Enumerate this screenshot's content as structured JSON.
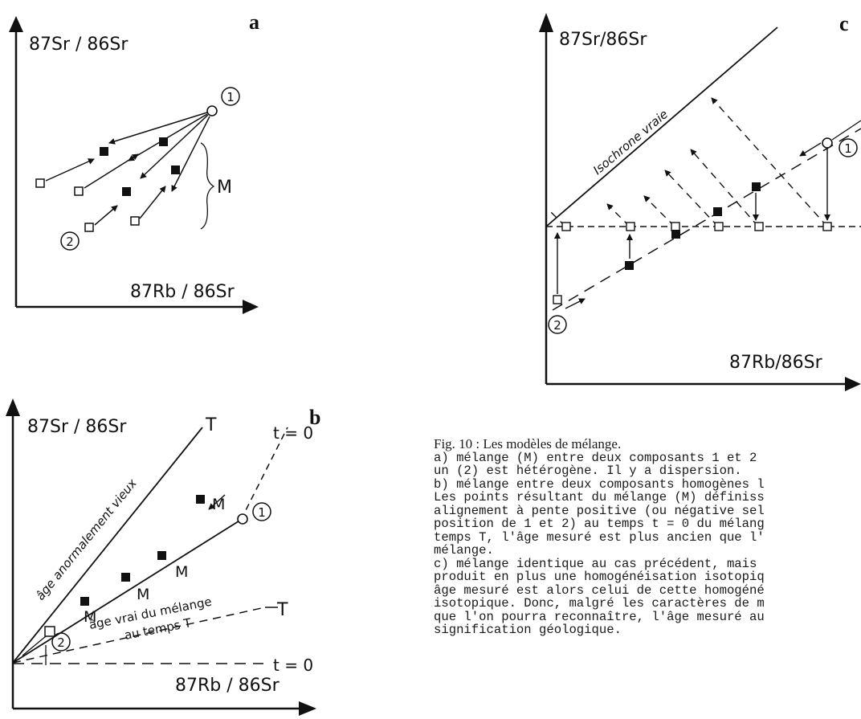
{
  "panels": {
    "a": {
      "letter": "a",
      "y_axis": "87Sr / 86Sr",
      "x_axis": "87Rb / 86Sr",
      "component_1": "1",
      "component_2": "2",
      "mixture": "M"
    },
    "b": {
      "letter": "b",
      "y_axis": "87Sr / 86Sr",
      "x_axis": "87Rb / 86Sr",
      "line_T_upper": "T",
      "line_t0_upper": "t = 0",
      "line_T_lower": "T",
      "line_t0_lower": "t = 0",
      "label_old_age": "âge anormalement vieux",
      "label_true_age_1": "âge vrai du mélange",
      "label_true_age_2": "au temps T",
      "component_1": "1",
      "component_2": "2",
      "mixture_labels": [
        "M",
        "M",
        "M",
        "M"
      ]
    },
    "c": {
      "letter": "c",
      "y_axis": "87Sr/86Sr",
      "x_axis": "87Rb/86Sr",
      "isochron": "Isochrone vraie",
      "component_1": "1",
      "component_2": "2"
    }
  },
  "caption": {
    "title": "Fig. 10 : Les modèles de mélange.",
    "lines": [
      "a) mélange (M) entre deux composants 1 et 2",
      "un (2) est hétérogène. Il y a dispersion.",
      "b) mélange entre deux composants homogènes l",
      "Les points résultant du mélange (M) définiss",
      "alignement à pente positive (ou négative sel",
      "position de 1 et 2) au temps t = 0 du mélang",
      "temps T, l'âge mesuré est plus ancien que l'",
      "mélange.",
      "c) mélange identique au cas précédent, mais",
      "produit en plus une homogénéisation isotopiq",
      "âge mesuré est alors celui de cette homogéné",
      "isotopique. Donc, malgré les caractères de m",
      "que l'on pourra reconnaître, l'âge mesuré au",
      "signification géologique."
    ]
  }
}
